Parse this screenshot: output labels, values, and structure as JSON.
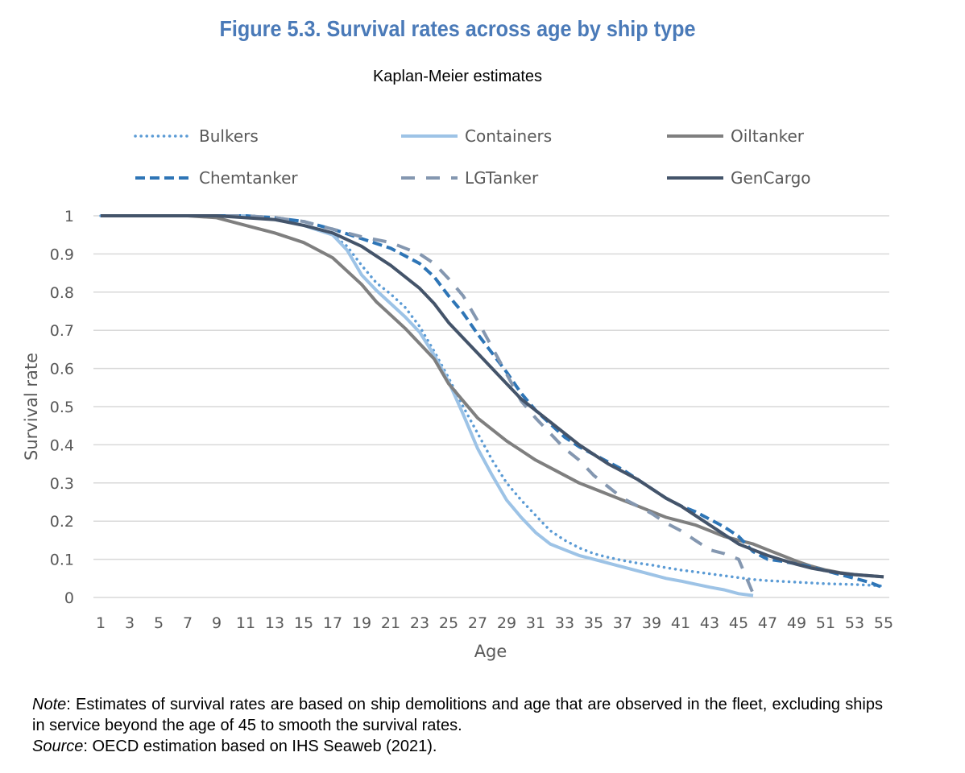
{
  "title": "Figure 5.3. Survival rates across age by ship type",
  "subtitle": "Kaplan-Meier estimates",
  "note": {
    "note_label": "Note",
    "note_text": ": Estimates of survival rates are based on ship demolitions and age that are observed in the fleet, excluding ships in service beyond the age of 45 to smooth the survival rates.",
    "source_label": "Source",
    "source_text": ": OECD estimation based on IHS Seaweb (2021)."
  },
  "chart_data": {
    "type": "line",
    "xlabel": "Age",
    "ylabel": "Survival rate",
    "xlim": [
      1,
      55
    ],
    "ylim": [
      0,
      1
    ],
    "x_ticks": [
      1,
      3,
      5,
      7,
      9,
      11,
      13,
      15,
      17,
      19,
      21,
      23,
      25,
      27,
      29,
      31,
      33,
      35,
      37,
      39,
      41,
      43,
      45,
      47,
      49,
      51,
      53,
      55
    ],
    "y_ticks": [
      0,
      0.1,
      0.2,
      0.3,
      0.4,
      0.5,
      0.6,
      0.7,
      0.8,
      0.9,
      1
    ],
    "y_tick_labels": [
      "0",
      "0.1",
      "0.2",
      "0.3",
      "0.4",
      "0.5",
      "0.6",
      "0.7",
      "0.8",
      "0.9",
      "1"
    ],
    "grid": "horizontal",
    "legend_position": "top",
    "series": [
      {
        "name": "Bulkers",
        "color": "#5b9bd5",
        "style": "dotted",
        "x": [
          1,
          3,
          5,
          7,
          9,
          11,
          13,
          15,
          17,
          18,
          19,
          20,
          21,
          22,
          23,
          24,
          25,
          26,
          27,
          28,
          29,
          30,
          31,
          32,
          33,
          34,
          35,
          36,
          37,
          38,
          39,
          40,
          41,
          42,
          43,
          44,
          45,
          46,
          47,
          48,
          49,
          50,
          51,
          52,
          53,
          54,
          55
        ],
        "y": [
          1,
          1,
          1,
          1,
          1,
          1,
          0.99,
          0.975,
          0.95,
          0.92,
          0.87,
          0.825,
          0.795,
          0.76,
          0.71,
          0.645,
          0.575,
          0.5,
          0.43,
          0.36,
          0.3,
          0.255,
          0.215,
          0.175,
          0.15,
          0.13,
          0.115,
          0.105,
          0.097,
          0.09,
          0.085,
          0.078,
          0.072,
          0.067,
          0.062,
          0.057,
          0.052,
          0.047,
          0.044,
          0.042,
          0.04,
          0.038,
          0.036,
          0.035,
          0.034,
          0.032,
          0.03
        ]
      },
      {
        "name": "Containers",
        "color": "#9dc3e6",
        "style": "solid",
        "x": [
          1,
          3,
          5,
          7,
          9,
          11,
          13,
          15,
          17,
          18,
          19,
          20,
          21,
          22,
          23,
          24,
          25,
          26,
          27,
          28,
          29,
          30,
          31,
          32,
          33,
          34,
          35,
          36,
          37,
          38,
          39,
          40,
          41,
          42,
          43,
          44,
          45,
          46
        ],
        "y": [
          1,
          1,
          1,
          1,
          1,
          1,
          0.99,
          0.975,
          0.95,
          0.91,
          0.845,
          0.805,
          0.77,
          0.735,
          0.695,
          0.635,
          0.565,
          0.48,
          0.39,
          0.32,
          0.255,
          0.21,
          0.17,
          0.14,
          0.125,
          0.11,
          0.1,
          0.09,
          0.08,
          0.07,
          0.06,
          0.05,
          0.043,
          0.035,
          0.027,
          0.02,
          0.01,
          0.005
        ]
      },
      {
        "name": "Oiltanker",
        "color": "#7f7f7f",
        "style": "solid",
        "x": [
          1,
          3,
          5,
          7,
          9,
          11,
          13,
          15,
          17,
          18,
          19,
          20,
          21,
          22,
          23,
          24,
          25,
          26,
          27,
          28,
          29,
          30,
          31,
          32,
          33,
          34,
          35,
          36,
          37,
          38,
          39,
          40,
          41,
          42,
          43,
          44,
          45,
          46,
          47,
          48,
          49,
          50,
          51,
          52,
          53,
          54,
          55
        ],
        "y": [
          1,
          1,
          1,
          1,
          0.995,
          0.975,
          0.955,
          0.93,
          0.89,
          0.855,
          0.82,
          0.775,
          0.74,
          0.705,
          0.665,
          0.625,
          0.56,
          0.515,
          0.47,
          0.44,
          0.41,
          0.385,
          0.36,
          0.34,
          0.32,
          0.3,
          0.285,
          0.27,
          0.255,
          0.24,
          0.225,
          0.21,
          0.2,
          0.19,
          0.175,
          0.16,
          0.15,
          0.14,
          0.125,
          0.11,
          0.095,
          0.082,
          0.072,
          0.065,
          0.06,
          0.057,
          0.054
        ]
      },
      {
        "name": "Chemtanker",
        "color": "#2e75b6",
        "style": "dashed",
        "x": [
          1,
          3,
          5,
          7,
          9,
          11,
          13,
          15,
          17,
          19,
          21,
          23,
          24,
          25,
          26,
          27,
          28,
          29,
          30,
          31,
          32,
          33,
          34,
          35,
          36,
          37,
          38,
          39,
          40,
          41,
          42,
          43,
          44,
          45,
          46,
          47,
          48,
          49,
          50,
          51,
          52,
          53,
          54,
          55
        ],
        "y": [
          1,
          1,
          1,
          1,
          1,
          1,
          0.995,
          0.985,
          0.965,
          0.94,
          0.915,
          0.875,
          0.84,
          0.79,
          0.745,
          0.69,
          0.64,
          0.59,
          0.535,
          0.49,
          0.455,
          0.42,
          0.395,
          0.375,
          0.355,
          0.335,
          0.31,
          0.285,
          0.26,
          0.24,
          0.225,
          0.205,
          0.185,
          0.16,
          0.12,
          0.1,
          0.095,
          0.088,
          0.08,
          0.07,
          0.06,
          0.05,
          0.04,
          0.025
        ]
      },
      {
        "name": "LGTanker",
        "color": "#8497b0",
        "style": "longdash",
        "x": [
          1,
          3,
          5,
          7,
          9,
          11,
          13,
          15,
          17,
          19,
          21,
          22,
          23,
          24,
          25,
          26,
          27,
          28,
          29,
          30,
          31,
          32,
          33,
          34,
          35,
          36,
          37,
          38,
          39,
          40,
          41,
          42,
          43,
          44,
          45,
          46
        ],
        "y": [
          1,
          1,
          1,
          1,
          1,
          1,
          0.995,
          0.985,
          0.965,
          0.945,
          0.93,
          0.915,
          0.9,
          0.875,
          0.835,
          0.79,
          0.725,
          0.655,
          0.585,
          0.515,
          0.47,
          0.43,
          0.39,
          0.36,
          0.32,
          0.29,
          0.26,
          0.24,
          0.22,
          0.195,
          0.175,
          0.15,
          0.125,
          0.115,
          0.1,
          0.01
        ]
      },
      {
        "name": "GenCargo",
        "color": "#44546a",
        "style": "solid",
        "x": [
          1,
          3,
          5,
          7,
          9,
          11,
          13,
          15,
          17,
          19,
          20,
          21,
          22,
          23,
          24,
          25,
          26,
          27,
          28,
          29,
          30,
          31,
          32,
          33,
          34,
          35,
          36,
          37,
          38,
          39,
          40,
          41,
          42,
          43,
          44,
          45,
          46,
          47,
          48,
          49,
          50,
          51,
          52,
          53,
          54,
          55
        ],
        "y": [
          1,
          1,
          1,
          1,
          1,
          0.995,
          0.99,
          0.975,
          0.955,
          0.92,
          0.895,
          0.87,
          0.84,
          0.81,
          0.77,
          0.72,
          0.68,
          0.64,
          0.6,
          0.56,
          0.52,
          0.49,
          0.46,
          0.43,
          0.4,
          0.375,
          0.35,
          0.33,
          0.31,
          0.285,
          0.26,
          0.24,
          0.215,
          0.19,
          0.165,
          0.14,
          0.125,
          0.11,
          0.098,
          0.087,
          0.077,
          0.07,
          0.064,
          0.06,
          0.057,
          0.054
        ]
      }
    ]
  }
}
